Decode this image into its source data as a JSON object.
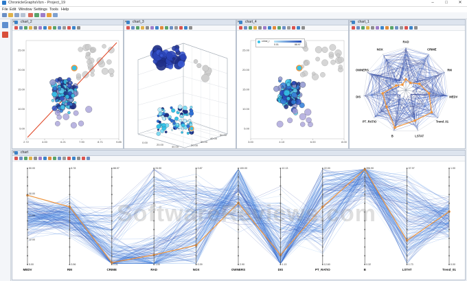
{
  "window": {
    "title": "ChronicleGraphsVizn - Project_19",
    "min": "–",
    "max": "□",
    "close": "✕"
  },
  "menu": [
    "File",
    "Edit",
    "Window",
    "Settings",
    "Tools",
    "Help"
  ],
  "panels": [
    {
      "title": "chart_2",
      "close": "✕"
    },
    {
      "title": "chart_3",
      "close": "✕"
    },
    {
      "title": "chart_4",
      "close": "✕"
    },
    {
      "title": "chart_1",
      "close": "✕"
    },
    {
      "title": "chart",
      "close": "✕"
    }
  ],
  "colors": {
    "accent": "#2b79c9",
    "line": "#3f7ee0",
    "highlight": "#f0953c",
    "regression": "#e04a2a",
    "dark_point": "#1f2f86",
    "light_point": "#36c2e8"
  },
  "icons": [
    "save-icon",
    "open-icon",
    "cut-icon",
    "copy-icon",
    "paste-icon",
    "undo-icon",
    "redo-icon",
    "zoom-icon",
    "select-icon",
    "settings-icon"
  ],
  "chart2": {
    "xticks": [
      "2.72",
      "4.00",
      "6.21",
      "7.90",
      "8.71",
      "9.85"
    ],
    "yticks": [
      "5.00",
      "10.00",
      "15.00",
      "20.00",
      "25.00"
    ]
  },
  "chart3": {
    "xticks": [
      "0.00",
      "20.00",
      "40.00"
    ],
    "yticks": [
      "20.00",
      "30.00",
      "40.00",
      "50.00"
    ]
  },
  "chart4": {
    "legend": "crime_r",
    "legend_min": "0.01",
    "legend_max": "88.97",
    "xticks": [
      "3.00",
      "4.10",
      "6.00",
      "8.00"
    ],
    "yticks": [
      "5.00",
      "10.00",
      "15.00",
      "20.00",
      "25.00"
    ]
  },
  "radar": {
    "axes": [
      "RAD",
      "CRIME",
      "RM",
      "MEDV",
      "Trend_01",
      "LSTAT",
      "B",
      "PT_RATIO",
      "DIS",
      "OWNERS",
      "NOX"
    ]
  },
  "parcoords": {
    "axes": [
      {
        "name": "MEDV",
        "top": "50.00",
        "bot": "5.00",
        "mid": "30.00",
        "mid2": "21.00",
        "mid3": "12.00"
      },
      {
        "name": "RM",
        "top": "8.78",
        "bot": "3.56"
      },
      {
        "name": "CRIME",
        "top": "88.97",
        "bot": "0.01"
      },
      {
        "name": "RAD",
        "top": "24.00",
        "bot": "1.00"
      },
      {
        "name": "NOX",
        "top": "0.87",
        "bot": "0.39"
      },
      {
        "name": "OWNERS",
        "top": "100.00",
        "bot": "2.90"
      },
      {
        "name": "DIS",
        "top": "12.13",
        "bot": "1.13"
      },
      {
        "name": "PT_RATIO",
        "top": "22.00",
        "bot": "12.60"
      },
      {
        "name": "B",
        "top": "396.90",
        "bot": "0.32"
      },
      {
        "name": "LSTAT",
        "top": "37.97",
        "bot": "1.73"
      },
      {
        "name": "Trend_01",
        "top": "1.00",
        "bot": "0.00"
      }
    ]
  },
  "watermark": "SoftwareReviews.com"
}
